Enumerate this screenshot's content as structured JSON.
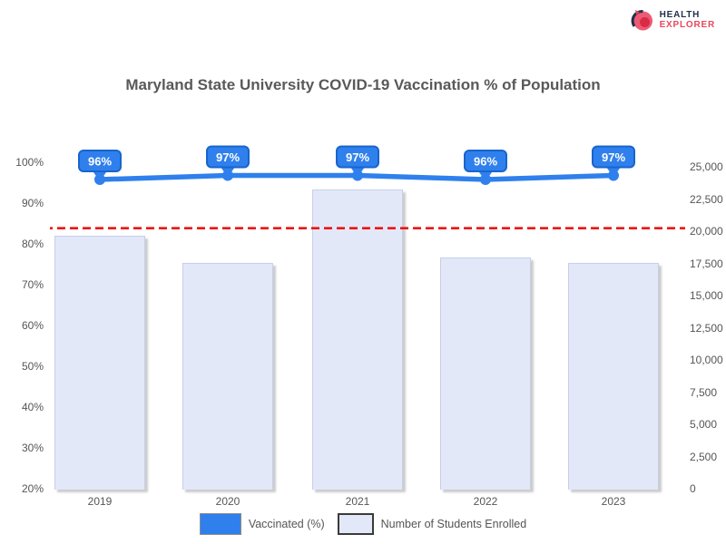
{
  "logo": {
    "line1": "HEALTH",
    "line2": "EXPLORER",
    "icon": "globe-icon",
    "colors": {
      "navy": "#232F4B",
      "pink": "#E8475F",
      "red": "#D92B45"
    }
  },
  "title": "Maryland State University COVID-19 Vaccination % of Population",
  "legend": {
    "item1": "Vaccinated (%)",
    "item2": "Number of Students Enrolled"
  },
  "chart_data": {
    "type": "bar",
    "subtype": "bar-with-line-overlay",
    "categories": [
      "2019",
      "2020",
      "2021",
      "2022",
      "2023"
    ],
    "series": [
      {
        "name": "Vaccinated (%)",
        "type": "line",
        "axis": "left",
        "values": [
          96,
          97,
          97,
          96,
          97
        ],
        "point_labels": [
          "96%",
          "97%",
          "97%",
          "96%",
          "97%"
        ],
        "color": "#2F80ED",
        "border_color": "#1765CC"
      },
      {
        "name": "Number of Students Enrolled",
        "type": "bar",
        "axis": "right",
        "values": [
          19700,
          17600,
          23300,
          18000,
          17600
        ],
        "color": "#E3E8F8",
        "border_color": "#C6CFEA"
      }
    ],
    "left_axis": {
      "ticks": [
        "100%",
        "90%",
        "80%",
        "70%",
        "60%",
        "50%",
        "40%",
        "30%",
        "20%"
      ],
      "min": 20,
      "max": 100
    },
    "right_axis": {
      "ticks": [
        "25,000",
        "22,500",
        "20,000",
        "17,500",
        "15,000",
        "12,500",
        "10,000",
        "7,500",
        "5,000",
        "2,500",
        "0"
      ],
      "min": 0,
      "max": 25000
    },
    "reference_line": {
      "value": 20300,
      "color": "#EE1111",
      "style": "dashed"
    },
    "grid": false,
    "legend_position": "bottom",
    "title": "Maryland State University COVID-19 Vaccination % of Population",
    "xlabel": "",
    "ylabel_left": "",
    "ylabel_right": ""
  }
}
